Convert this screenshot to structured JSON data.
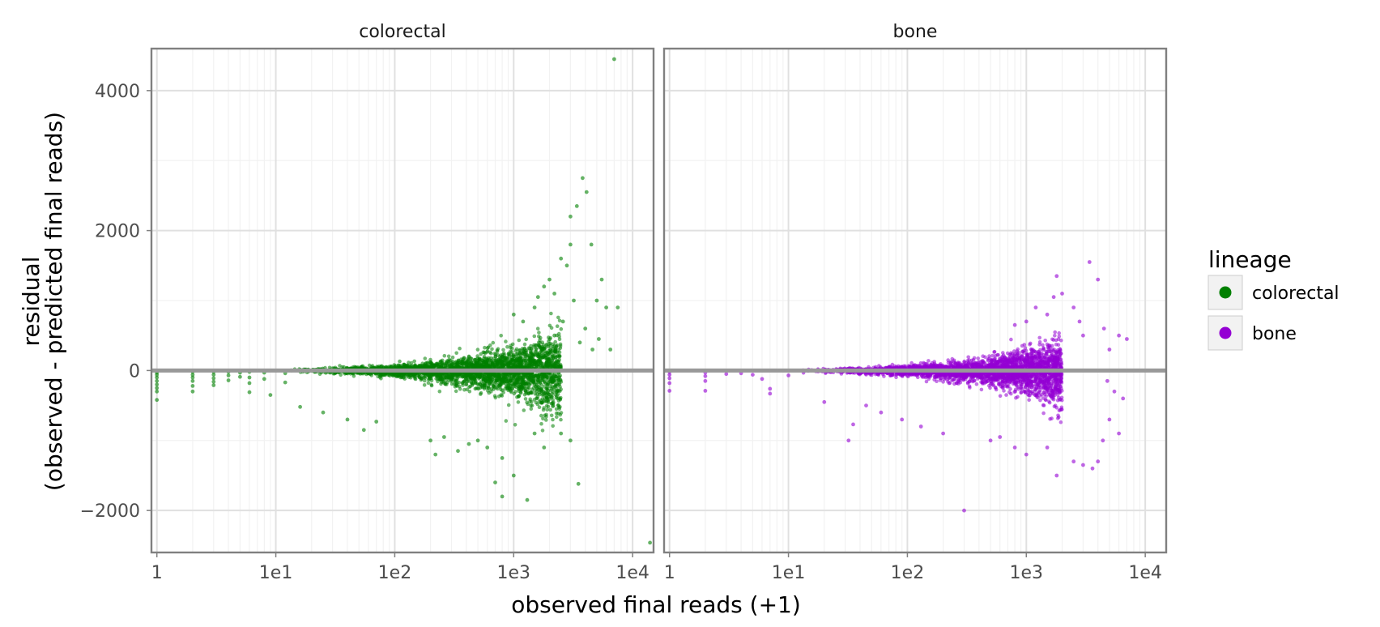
{
  "chart_data": {
    "type": "scatter",
    "title": "",
    "xlabel": "observed final reads (+1)",
    "ylabel_lines": [
      "residual",
      "(observed - predicted final reads)"
    ],
    "x_scale": "log10",
    "xlim": [
      0.9,
      15000
    ],
    "ylim": [
      -2600,
      4600
    ],
    "x_ticks": [
      {
        "value": 1,
        "label": "1"
      },
      {
        "value": 10,
        "label": "1e1"
      },
      {
        "value": 100,
        "label": "1e2"
      },
      {
        "value": 1000,
        "label": "1e3"
      },
      {
        "value": 10000,
        "label": "1e4"
      }
    ],
    "y_ticks": [
      {
        "value": -2000,
        "label": "−2000"
      },
      {
        "value": 0,
        "label": "0"
      },
      {
        "value": 2000,
        "label": "2000"
      },
      {
        "value": 4000,
        "label": "4000"
      }
    ],
    "reference_line": {
      "y": 0,
      "color": "#999999"
    },
    "grid": true,
    "legend": {
      "title": "lineage",
      "placement": "right",
      "entries": [
        {
          "label": "colorectal",
          "color": "#008000"
        },
        {
          "label": "bone",
          "color": "#9400d3"
        }
      ]
    },
    "facets": [
      {
        "label": "colorectal",
        "color": "#008000",
        "series": [
          {
            "name": "colorectal",
            "points": [
              [
                1,
                -30
              ],
              [
                1,
                -60
              ],
              [
                1,
                -100
              ],
              [
                1,
                -150
              ],
              [
                1,
                -200
              ],
              [
                1,
                -250
              ],
              [
                1,
                -300
              ],
              [
                1,
                -420
              ],
              [
                2,
                -20
              ],
              [
                2,
                -60
              ],
              [
                2,
                -100
              ],
              [
                2,
                -150
              ],
              [
                2,
                -220
              ],
              [
                2,
                -300
              ],
              [
                3,
                -20
              ],
              [
                3,
                -60
              ],
              [
                3,
                -110
              ],
              [
                3,
                -160
              ],
              [
                3,
                -210
              ],
              [
                4,
                -20
              ],
              [
                4,
                -70
              ],
              [
                4,
                -140
              ],
              [
                5,
                -30
              ],
              [
                5,
                -90
              ],
              [
                6,
                -20
              ],
              [
                6,
                -100
              ],
              [
                6,
                -180
              ],
              [
                6,
                -310
              ],
              [
                8,
                -30
              ],
              [
                8,
                -120
              ],
              [
                9,
                -350
              ],
              [
                12,
                -40
              ],
              [
                12,
                -170
              ],
              [
                16,
                -520
              ],
              [
                25,
                -600
              ],
              [
                40,
                -700
              ],
              [
                55,
                -850
              ],
              [
                70,
                -730
              ],
              [
                200,
                -1000
              ],
              [
                220,
                -1200
              ],
              [
                260,
                -950
              ],
              [
                340,
                -1150
              ],
              [
                420,
                -1050
              ],
              [
                500,
                -1000
              ],
              [
                600,
                -1100
              ],
              [
                800,
                -1250
              ],
              [
                1500,
                -900
              ],
              [
                1800,
                -1100
              ],
              [
                2500,
                -900
              ],
              [
                3000,
                -1000
              ],
              [
                800,
                -1800
              ],
              [
                1300,
                -1850
              ],
              [
                3500,
                -1620
              ],
              [
                700,
                -1600
              ],
              [
                1000,
                -1500
              ],
              [
                14000,
                -2460
              ],
              [
                1000,
                800
              ],
              [
                1200,
                700
              ],
              [
                1500,
                900
              ],
              [
                1600,
                1050
              ],
              [
                1800,
                1200
              ],
              [
                2000,
                1300
              ],
              [
                2200,
                1100
              ],
              [
                2500,
                1600
              ],
              [
                2800,
                1500
              ],
              [
                3000,
                1800
              ],
              [
                3000,
                2200
              ],
              [
                3400,
                2350
              ],
              [
                3800,
                2750
              ],
              [
                4100,
                2550
              ],
              [
                4500,
                1800
              ],
              [
                5000,
                1000
              ],
              [
                5500,
                1300
              ],
              [
                6000,
                900
              ],
              [
                7500,
                900
              ],
              [
                4000,
                600
              ],
              [
                3600,
                400
              ],
              [
                4600,
                300
              ],
              [
                5200,
                450
              ],
              [
                6500,
                300
              ],
              [
                7000,
                4450
              ],
              [
                2200,
                500
              ],
              [
                2600,
                700
              ],
              [
                3200,
                1000
              ]
            ]
          }
        ]
      },
      {
        "label": "bone",
        "color": "#9400d3",
        "series": [
          {
            "name": "bone",
            "points": [
              [
                1,
                -20
              ],
              [
                1,
                -60
              ],
              [
                1,
                -110
              ],
              [
                1,
                -180
              ],
              [
                1,
                -290
              ],
              [
                2,
                -30
              ],
              [
                2,
                -80
              ],
              [
                2,
                -150
              ],
              [
                2,
                -290
              ],
              [
                3,
                -50
              ],
              [
                4,
                -40
              ],
              [
                5,
                -60
              ],
              [
                6,
                -120
              ],
              [
                7,
                -260
              ],
              [
                7,
                -330
              ],
              [
                10,
                -70
              ],
              [
                20,
                -450
              ],
              [
                35,
                -770
              ],
              [
                32,
                -1000
              ],
              [
                45,
                -500
              ],
              [
                60,
                -600
              ],
              [
                90,
                -700
              ],
              [
                130,
                -800
              ],
              [
                200,
                -900
              ],
              [
                300,
                -2000
              ],
              [
                500,
                -1000
              ],
              [
                600,
                -950
              ],
              [
                800,
                -1100
              ],
              [
                1000,
                -1200
              ],
              [
                1500,
                -1100
              ],
              [
                1800,
                -1500
              ],
              [
                2500,
                -1300
              ],
              [
                3000,
                -1350
              ],
              [
                3600,
                -1400
              ],
              [
                4000,
                -1300
              ],
              [
                4400,
                -1000
              ],
              [
                5000,
                -700
              ],
              [
                6000,
                -900
              ],
              [
                6500,
                -400
              ],
              [
                800,
                650
              ],
              [
                1000,
                700
              ],
              [
                1200,
                900
              ],
              [
                1500,
                800
              ],
              [
                1700,
                1050
              ],
              [
                1800,
                1350
              ],
              [
                2000,
                1100
              ],
              [
                2500,
                900
              ],
              [
                2800,
                700
              ],
              [
                3000,
                500
              ],
              [
                3400,
                1550
              ],
              [
                4000,
                1300
              ],
              [
                4500,
                600
              ],
              [
                5000,
                300
              ],
              [
                6000,
                500
              ],
              [
                7000,
                450
              ],
              [
                5500,
                -300
              ],
              [
                4800,
                -150
              ]
            ]
          }
        ]
      }
    ]
  }
}
